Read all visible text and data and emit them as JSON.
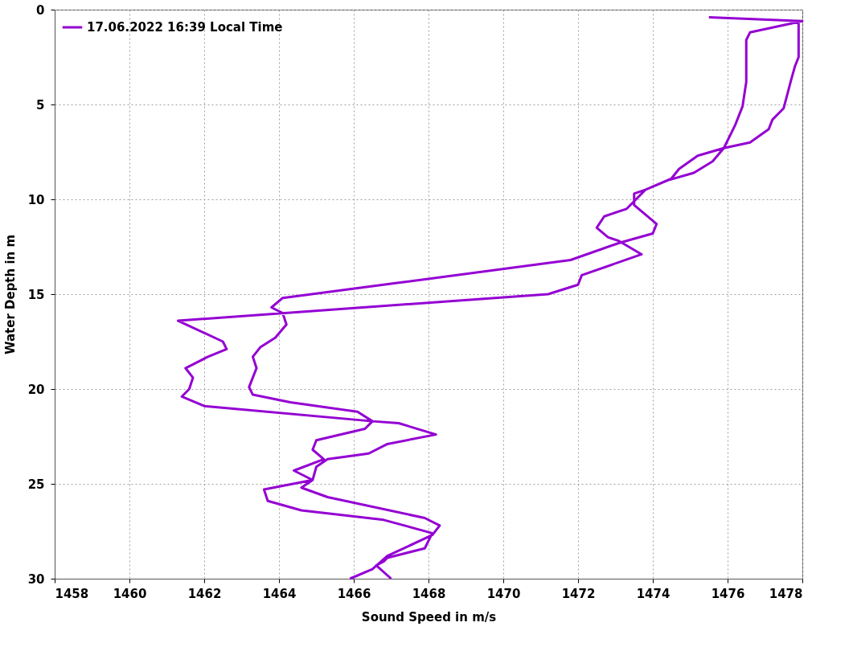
{
  "chart_data": {
    "type": "line",
    "xlabel": "Sound Speed in m/s",
    "ylabel": "Water Depth in m",
    "xlim": [
      1458,
      1478
    ],
    "xticks": [
      1458,
      1460,
      1462,
      1464,
      1466,
      1468,
      1470,
      1472,
      1474,
      1476,
      1478
    ],
    "ylim": [
      30,
      0
    ],
    "yticks": [
      0,
      5,
      10,
      15,
      20,
      25,
      30
    ],
    "grid": true,
    "legend": "top left",
    "line_style": "solid",
    "marker": "none",
    "series": [
      {
        "name": "17.06.2022 16:39 Local Time",
        "color": "#9400d3",
        "x": [
          1475.5,
          1478.0,
          1477.9,
          1477.9,
          1477.8,
          1477.7,
          1477.5,
          1477.2,
          1477.1,
          1476.6,
          1475.9,
          1475.2,
          1474.7,
          1474.5,
          1473.8,
          1473.5,
          1473.5,
          1474.1,
          1474.0,
          1473.1,
          1471.8,
          1467.2,
          1464.1,
          1463.8,
          1464.1,
          1464.2,
          1463.9,
          1463.5,
          1463.3,
          1463.4,
          1463.2,
          1463.3,
          1464.3,
          1466.1,
          1466.5,
          1466.3,
          1465.0,
          1464.9,
          1465.2,
          1464.4,
          1464.9,
          1464.6,
          1465.3,
          1467.9,
          1468.3,
          1468.1,
          1466.9,
          1466.5,
          1465.9,
          null,
          1478.0,
          1476.6,
          1476.5,
          1476.5,
          1476.4,
          1476.2,
          1475.9,
          1475.6,
          1475.1,
          1474.4,
          1473.8,
          1473.3,
          1472.7,
          1472.5,
          1472.8,
          1473.1,
          1473.7,
          1472.1,
          1472.0,
          1471.2,
          1461.3,
          1462.5,
          1462.6,
          1462.1,
          1461.5,
          1461.7,
          1461.6,
          1461.4,
          1462.0,
          1466.5,
          1467.2,
          1468.2,
          1466.9,
          1466.4,
          1465.3,
          1465.0,
          1464.9,
          1463.6,
          1463.7,
          1464.6,
          1466.8,
          1468.1,
          1467.9,
          1466.9,
          1466.8,
          1466.6,
          1467.0
        ],
        "values": [
          0.4,
          0.6,
          0.6,
          2.5,
          3.0,
          3.7,
          5.2,
          5.8,
          6.3,
          7.0,
          7.3,
          7.7,
          8.4,
          8.9,
          9.5,
          9.7,
          10.3,
          11.3,
          11.8,
          12.3,
          13.2,
          14.4,
          15.2,
          15.7,
          16.0,
          16.6,
          17.3,
          17.8,
          18.3,
          18.9,
          19.9,
          20.3,
          20.7,
          21.2,
          21.7,
          22.1,
          22.7,
          23.2,
          23.7,
          24.3,
          24.8,
          25.2,
          25.7,
          26.8,
          27.2,
          27.7,
          28.8,
          29.5,
          30.0,
          null,
          0.6,
          1.2,
          1.6,
          3.8,
          5.1,
          6.1,
          7.3,
          8.0,
          8.6,
          9.0,
          9.5,
          10.5,
          10.9,
          11.5,
          12.0,
          12.2,
          12.9,
          14.0,
          14.5,
          15.0,
          16.4,
          17.5,
          17.9,
          18.3,
          18.9,
          19.4,
          20.0,
          20.4,
          20.9,
          21.7,
          21.8,
          22.4,
          22.9,
          23.4,
          23.7,
          24.1,
          24.8,
          25.3,
          25.9,
          26.4,
          26.9,
          27.6,
          28.4,
          28.9,
          29.1,
          29.3,
          30.0
        ]
      }
    ]
  }
}
